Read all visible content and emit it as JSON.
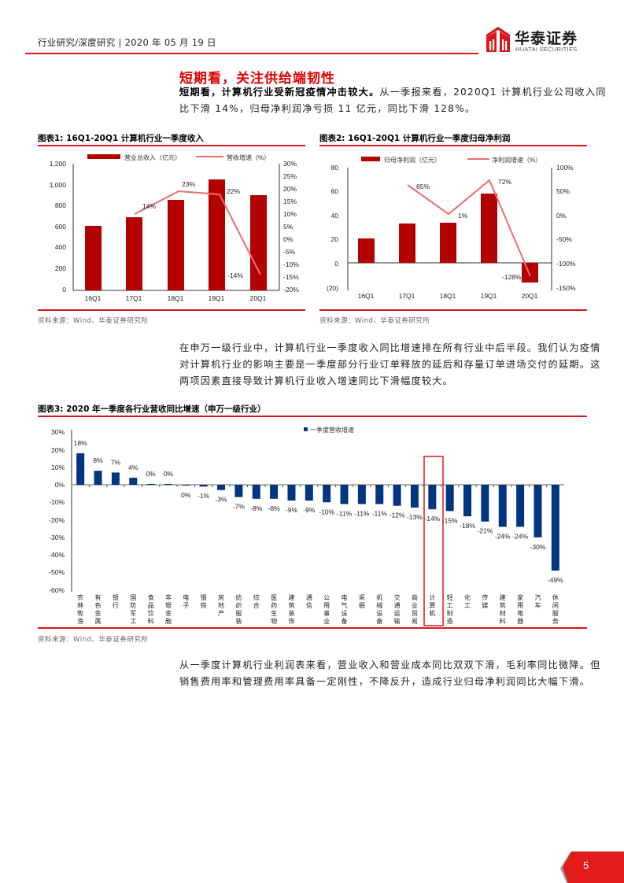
{
  "header": {
    "breadcrumb": "行业研究/深度研究 | 2020 年 05 月 19 日",
    "logo_cn": "华泰证券",
    "logo_en": "HUATAI SECURITIES"
  },
  "section": {
    "title": "短期看，关注供给端韧性",
    "para1_bold": "短期看，计算机行业受新冠疫情冲击较大。",
    "para1_rest": "从一季报来看，2020Q1 计算机行业公司收入同比下滑 14%，归母净利润净亏损 11 亿元，同比下滑 128%。",
    "para2": "在申万一级行业中，计算机行业一季度收入同比增速排在所有行业中后半段。我们认为疫情对计算机行业的影响主要是一季度部分行业订单释放的延后和存量订单进场交付的延期。这两项因素直接导致计算机行业收入增速同比下滑幅度较大。",
    "para3": "从一季度计算机行业利润表来看，营业收入和营业成本同比双双下滑，毛利率同比微降。但销售费用率和管理费用率具备一定刚性，不降反升，造成行业归母净利润同比大幅下滑。"
  },
  "figures": {
    "fig1_title": "图表1:   16Q1-20Q1 计算机行业一季度收入",
    "fig2_title": "图表2:   16Q1-20Q1 计算机行业一季度归母净利润",
    "fig3_title": "图表3:   2020 年一季度各行业营收同比增速（申万一级行业）",
    "source": "资料来源：Wind、华泰证券研究所"
  },
  "colors": {
    "brand_red": "#d7191c",
    "bar_red": "#b30000",
    "line_pink": "#f26b6b",
    "bar_navy": "#003580",
    "highlight_box": "#d7191c"
  },
  "page_number": "5",
  "chart_data": [
    {
      "type": "bar+line",
      "title": "16Q1-20Q1 计算机行业一季度收入",
      "categories": [
        "16Q1",
        "17Q1",
        "18Q1",
        "19Q1",
        "20Q1"
      ],
      "series": [
        {
          "name": "营业总收入（亿元）",
          "type": "bar",
          "axis": "left",
          "values": [
            615,
            700,
            865,
            1060,
            910
          ]
        },
        {
          "name": "营收增速（%）",
          "type": "line",
          "axis": "right",
          "values": [
            14,
            23,
            22,
            -14
          ],
          "x_start_index": 1,
          "labels": [
            "14%",
            "23%",
            "22%",
            "-14%"
          ]
        }
      ],
      "ylim_left": [
        0,
        1200
      ],
      "yticks_left": [
        "0",
        "200",
        "400",
        "600",
        "800",
        "1,000",
        "1,200"
      ],
      "ylim_right": [
        -20,
        30
      ],
      "yticks_right": [
        "-20%",
        "-15%",
        "-10%",
        "-5%",
        "0%",
        "5%",
        "10%",
        "15%",
        "20%",
        "25%",
        "30%"
      ],
      "legend_position": "top"
    },
    {
      "type": "bar+line",
      "title": "16Q1-20Q1 计算机行业一季度归母净利润",
      "categories": [
        "16Q1",
        "17Q1",
        "18Q1",
        "19Q1",
        "20Q1"
      ],
      "series": [
        {
          "name": "归母净利润（亿元）",
          "type": "bar",
          "axis": "left",
          "values": [
            20,
            33,
            34,
            58,
            -11
          ]
        },
        {
          "name": "净利润增速（%）",
          "type": "line",
          "axis": "right",
          "values": [
            65,
            1,
            72,
            -128
          ],
          "x_start_index": 1,
          "labels": [
            "65%",
            "1%",
            "72%",
            "-128%"
          ]
        }
      ],
      "ylim_left": [
        -20,
        80
      ],
      "yticks_left": [
        "(20)",
        "0",
        "20",
        "40",
        "60",
        "80"
      ],
      "ylim_right": [
        -150,
        100
      ],
      "yticks_right": [
        "-150%",
        "-100%",
        "-50%",
        "0%",
        "50%",
        "100%"
      ],
      "legend_position": "top"
    },
    {
      "type": "bar",
      "title": "2020 年一季度各行业营收同比增速（申万一级行业）",
      "categories": [
        "农林牧渔",
        "有色金属",
        "银行",
        "国防军工",
        "食品饮料",
        "非银金融",
        "电子",
        "钢铁",
        "房地产",
        "纺织服装",
        "综合",
        "医药生物",
        "建筑装饰",
        "通信",
        "公用事业",
        "电气设备",
        "采掘",
        "机械设备",
        "交通运输",
        "商业贸易",
        "计算机",
        "轻工制造",
        "化工",
        "传媒",
        "建筑材料",
        "家用电器",
        "汽车",
        "休闲服务"
      ],
      "series": [
        {
          "name": "一季度营收增速",
          "values": [
            18,
            8,
            7,
            4,
            0.4,
            0.3,
            -0.4,
            -1,
            -3,
            -7,
            -8,
            -8,
            -9,
            -9,
            -10,
            -11,
            -11,
            -11,
            -12,
            -13,
            -14,
            -15,
            -18,
            -21,
            -24,
            -24,
            -30,
            -49
          ],
          "labels": [
            "18%",
            "8%",
            "7%",
            "4%",
            "0%",
            "0%",
            "0%",
            "-1%",
            "-3%",
            "-7%",
            "-8%",
            "-8%",
            "-9%",
            "-9%",
            "-10%",
            "-11%",
            "-11%",
            "-11%",
            "-12%",
            "-13%",
            "-14%",
            "-15%",
            "-18%",
            "-21%",
            "-24%",
            "-24%",
            "-30%",
            "-49%"
          ]
        }
      ],
      "ylim": [
        -60,
        30
      ],
      "yticks": [
        "30%",
        "20%",
        "10%",
        "0%",
        "-10%",
        "-20%",
        "-30%",
        "-40%",
        "-50%",
        "-60%"
      ],
      "highlight": "计算机",
      "legend_position": "top-center"
    }
  ]
}
